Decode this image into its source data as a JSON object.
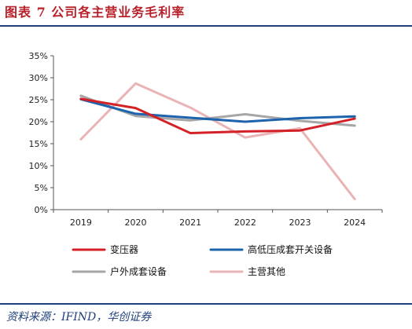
{
  "header": {
    "title": "图表 7   公司各主营业务毛利率"
  },
  "footer": {
    "source": "资料来源：IFIND，华创证券"
  },
  "colors": {
    "title": "#b8212a",
    "rule": "#1f3f7a",
    "axis": "#555555"
  },
  "chart_data": {
    "type": "line",
    "x": [
      "2019",
      "2020",
      "2021",
      "2022",
      "2023",
      "2024"
    ],
    "ylim": [
      0,
      35
    ],
    "yticks": [
      "0%",
      "5%",
      "10%",
      "15%",
      "20%",
      "25%",
      "30%",
      "35%"
    ],
    "grid": false,
    "legend_position": "bottom",
    "series": [
      {
        "name": "变压器",
        "color": "#d42127",
        "values": [
          25.2,
          23.1,
          17.4,
          17.8,
          18.0,
          20.7
        ]
      },
      {
        "name": "高低压成套开关设备",
        "color": "#1d64ad",
        "values": [
          25.1,
          21.8,
          20.9,
          20.0,
          20.8,
          21.2
        ]
      },
      {
        "name": "户外成套设备",
        "color": "#a6a6a6",
        "values": [
          25.9,
          21.3,
          20.3,
          21.7,
          20.2,
          19.1
        ]
      },
      {
        "name": "主营其他",
        "color": "#eab4b6",
        "values": [
          16.0,
          28.7,
          23.2,
          16.4,
          18.5,
          2.4
        ]
      }
    ]
  }
}
